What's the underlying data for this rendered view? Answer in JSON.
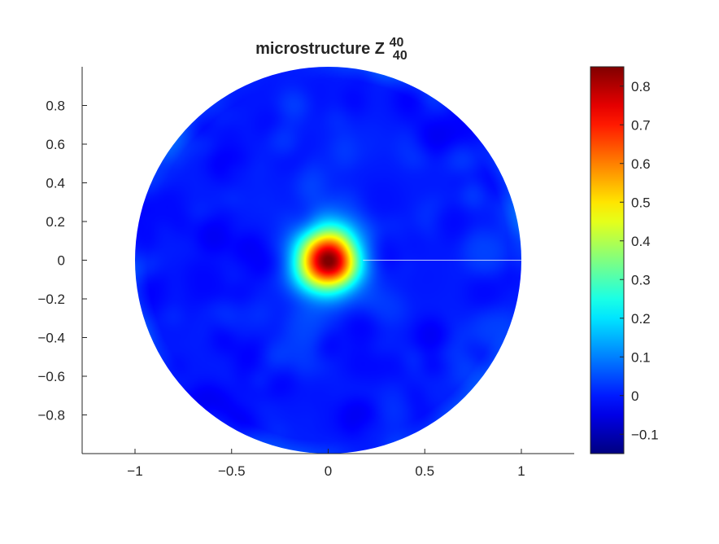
{
  "chart_data": {
    "type": "heatmap",
    "title": {
      "main": "microstructure Z",
      "superscript": "40",
      "subscript": "40"
    },
    "xlabel": "",
    "ylabel": "",
    "xlim": [
      -1.28,
      1.28
    ],
    "ylim": [
      -1,
      1
    ],
    "x_ticks": [
      -1,
      -0.5,
      0,
      0.5,
      1
    ],
    "x_tick_labels": [
      "−1",
      "−0.5",
      "0",
      "0.5",
      "1"
    ],
    "y_ticks": [
      0.8,
      0.6,
      0.4,
      0.2,
      0,
      -0.2,
      -0.4,
      -0.6,
      -0.8
    ],
    "y_tick_labels": [
      "0.8",
      "0.6",
      "0.4",
      "0.2",
      "0",
      "−0.2",
      "−0.4",
      "−0.6",
      "−0.8"
    ],
    "domain": "unit disk",
    "colormap": "jet",
    "color_range": [
      -0.15,
      0.85
    ],
    "colorbar": {
      "placement": "right",
      "ticks": [
        0.8,
        0.7,
        0.6,
        0.5,
        0.4,
        0.3,
        0.2,
        0.1,
        0,
        -0.1
      ],
      "tick_labels": [
        "0.8",
        "0.7",
        "0.6",
        "0.5",
        "0.4",
        "0.3",
        "0.2",
        "0.1",
        "0",
        "−0.1"
      ]
    },
    "grid": false,
    "peak": {
      "x": 0,
      "y": 0,
      "value": 0.85,
      "width": 0.11
    },
    "background_value": 0.0
  }
}
